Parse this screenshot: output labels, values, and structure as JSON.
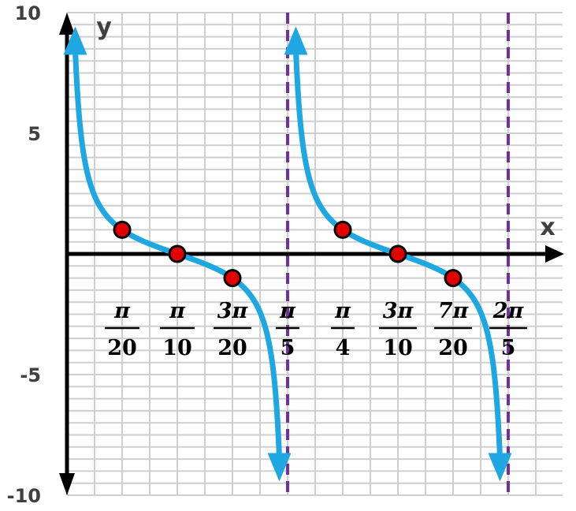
{
  "chart_data": {
    "type": "line",
    "title": "",
    "xlabel": "x",
    "ylabel": "y",
    "ylim": [
      -10,
      10
    ],
    "y_ticks": [
      "10",
      "5",
      "-5",
      "-10"
    ],
    "x_tick_labels": [
      {
        "num": "π",
        "den": "20"
      },
      {
        "num": "π",
        "den": "10"
      },
      {
        "num": "3π",
        "den": "20"
      },
      {
        "num": "π",
        "den": "5"
      },
      {
        "num": "π",
        "den": "4"
      },
      {
        "num": "3π",
        "den": "10"
      },
      {
        "num": "7π",
        "den": "20"
      },
      {
        "num": "2π",
        "den": "5"
      }
    ],
    "x_tick_values_over_pi": [
      0.05,
      0.1,
      0.15,
      0.2,
      0.25,
      0.3,
      0.35,
      0.4
    ],
    "function": "y = cot(5x)",
    "asymptotes_over_pi": [
      0.2,
      0.4
    ],
    "points": [
      {
        "x_over_pi": 0.05,
        "y": 1
      },
      {
        "x_over_pi": 0.1,
        "y": 0
      },
      {
        "x_over_pi": 0.15,
        "y": -1
      },
      {
        "x_over_pi": 0.25,
        "y": 1
      },
      {
        "x_over_pi": 0.3,
        "y": 0
      },
      {
        "x_over_pi": 0.35,
        "y": -1
      }
    ],
    "grid": true,
    "colors": {
      "curve": "#1fa7e1",
      "asymptote": "#7030a0",
      "point_fill": "#e00000",
      "grid": "#cfcfcf",
      "axis": "#000000"
    }
  }
}
